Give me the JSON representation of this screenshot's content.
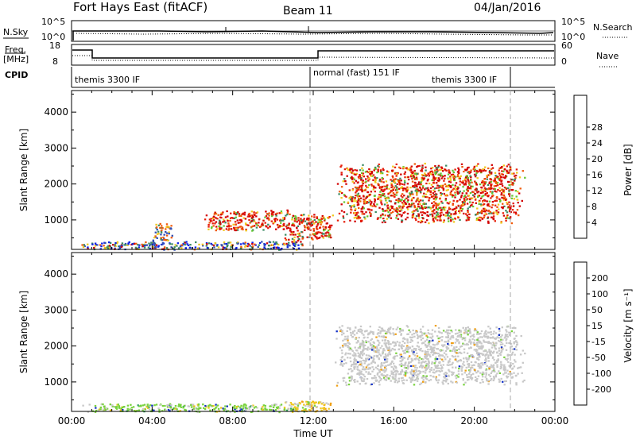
{
  "header": {
    "title": "Fort Hays East (fitACF)",
    "beam": "Beam 11",
    "date": "04/Jan/2016"
  },
  "strip_panels": {
    "nsky": {
      "label": "N.Sky",
      "ticks_left": [
        "10^5",
        "10^0"
      ],
      "ticks_right": [
        "10^5",
        "10^0"
      ],
      "right_label": "N.Search"
    },
    "freq": {
      "label_line1": "Freq.",
      "label_line2": "[MHz]",
      "ticks_left": [
        "18",
        "8"
      ],
      "ticks_right": [
        "60",
        "0"
      ],
      "right_label": "Nave"
    },
    "cpid": {
      "label": "CPID",
      "segments": [
        "themis 3300 IF",
        "normal (fast) 151 IF",
        "themis 3300 IF"
      ]
    }
  },
  "chart_data": [
    {
      "type": "heatmap",
      "name": "power",
      "ylabel": "Slant Range [km]",
      "yticks": [
        "1000",
        "2000",
        "3000",
        "4000"
      ],
      "ylim": [
        180,
        4600
      ],
      "xlim_hours": [
        0,
        24
      ],
      "colorbar": {
        "label": "Power [dB]",
        "ticks": [
          "4",
          "8",
          "12",
          "16",
          "20",
          "24",
          "28"
        ],
        "colors": [
          "#0a1ee6",
          "#3250b4",
          "#3c8c64",
          "#64c832",
          "#f0c81e",
          "#f08c14",
          "#f05a0a",
          "#e61e0a",
          "#d20000"
        ]
      },
      "echo_regions": [
        {
          "t0": 0.0,
          "t1": 12.0,
          "r0": 180,
          "r1": 420,
          "level": "mixed"
        },
        {
          "t0": 4.0,
          "t1": 5.0,
          "r0": 400,
          "r1": 1000,
          "level": "mid"
        },
        {
          "t0": 6.5,
          "t1": 11.0,
          "r0": 700,
          "r1": 1300,
          "level": "high"
        },
        {
          "t0": 10.5,
          "t1": 13.0,
          "r0": 400,
          "r1": 1200,
          "level": "high"
        },
        {
          "t0": 13.0,
          "t1": 22.5,
          "r0": 900,
          "r1": 2600,
          "level": "high"
        }
      ]
    },
    {
      "type": "heatmap",
      "name": "velocity",
      "ylabel": "Slant Range [km]",
      "yticks": [
        "1000",
        "2000",
        "3000",
        "4000"
      ],
      "ylim": [
        180,
        4600
      ],
      "xlim_hours": [
        0,
        24
      ],
      "xticks": [
        "00:00",
        "04:00",
        "08:00",
        "12:00",
        "16:00",
        "20:00",
        "00:00"
      ],
      "xlabel": "Time UT",
      "colorbar": {
        "label": "Velocity [m s⁻¹]",
        "ticks": [
          "200",
          "100",
          "50",
          "15",
          "-15",
          "-50",
          "-100",
          "-200"
        ],
        "colors": [
          "#1432c8",
          "#286e96",
          "#3caa64",
          "#78d23c",
          "#c8c8c8",
          "#f0c81e",
          "#f0a014",
          "#f06414",
          "#e60000"
        ]
      },
      "echo_regions": [
        {
          "t0": 0.0,
          "t1": 12.0,
          "r0": 180,
          "r1": 420,
          "level": "green"
        },
        {
          "t0": 10.5,
          "t1": 13.0,
          "r0": 180,
          "r1": 500,
          "level": "orange"
        },
        {
          "t0": 13.0,
          "t1": 22.5,
          "r0": 900,
          "r1": 2600,
          "level": "grey"
        }
      ]
    }
  ]
}
